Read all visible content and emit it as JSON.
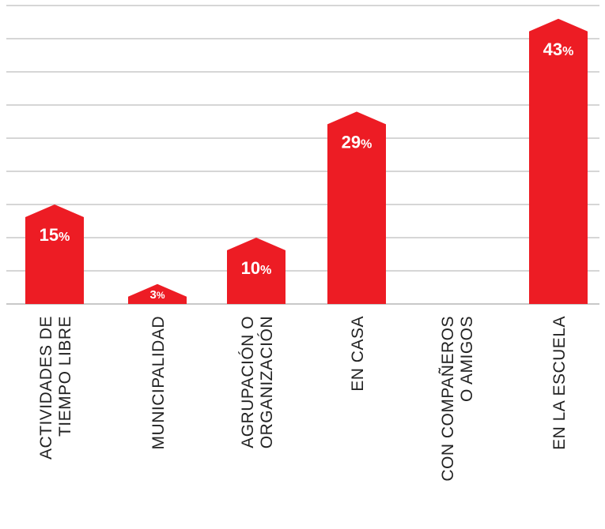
{
  "colors": {
    "bar": "#ed1c24",
    "grid": "#c8c8c8",
    "label_text": "#222222",
    "value_text": "#ffffff"
  },
  "chart_data": {
    "type": "bar",
    "categories": [
      [
        "ACTIVIDADES DE",
        "TIEMPO LIBRE"
      ],
      [
        "MUNICIPALIDAD"
      ],
      [
        "AGRUPACIÓN O",
        "ORGANIZACIÓN"
      ],
      [
        "EN CASA"
      ],
      [
        "CON COMPAÑEROS",
        "O AMIGOS"
      ],
      [
        "EN LA ESCUELA"
      ]
    ],
    "values": [
      15,
      3,
      10,
      29,
      null,
      43
    ],
    "value_labels": [
      "15",
      "3",
      "10",
      "29",
      "",
      "43"
    ],
    "value_suffix": "%",
    "ylim": [
      0,
      45
    ],
    "grid": true,
    "legend": "none",
    "title": "",
    "xlabel": "",
    "ylabel": ""
  }
}
